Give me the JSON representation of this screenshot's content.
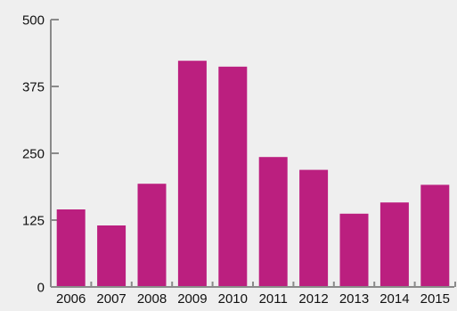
{
  "chart_data": {
    "type": "bar",
    "title": "",
    "xlabel": "",
    "ylabel": "",
    "categories": [
      "2006",
      "2007",
      "2008",
      "2009",
      "2010",
      "2011",
      "2012",
      "2013",
      "2014",
      "2015"
    ],
    "values": [
      145,
      115,
      193,
      423,
      412,
      243,
      219,
      137,
      158,
      191
    ],
    "ylim": [
      0,
      500
    ],
    "yticks": [
      0,
      125,
      250,
      375,
      500
    ],
    "grid": false,
    "bar_color": "#bb1f7f",
    "axis_color": "#8a8a8a",
    "background_color": "#efefef"
  }
}
